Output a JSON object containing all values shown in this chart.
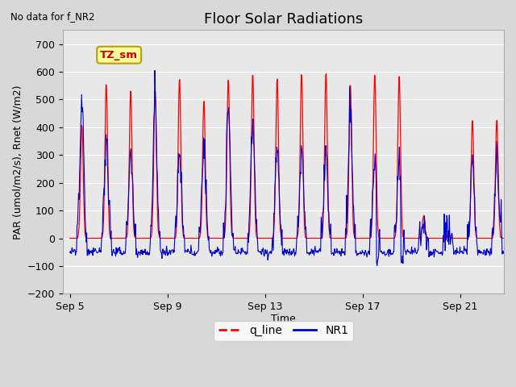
{
  "title": "Floor Solar Radiations",
  "subtitle": "No data for f_NR2",
  "xlabel": "Time",
  "ylabel": "PAR (umol/m2/s), Rnet (W/m2)",
  "ylim": [
    -200,
    750
  ],
  "yticks": [
    -200,
    -100,
    0,
    100,
    200,
    300,
    400,
    500,
    600,
    700
  ],
  "xtick_labels": [
    "Sep 5",
    "Sep 9",
    "Sep 13",
    "Sep 17",
    "Sep 21"
  ],
  "xtick_positions": [
    5,
    9,
    13,
    17,
    21
  ],
  "legend_entries": [
    "q_line",
    "NR1"
  ],
  "q_line_color": "#ff0000",
  "NR1_color": "#0000cc",
  "plot_bg": "#e8e8e8",
  "fig_bg": "#d8d8d8",
  "grid_color": "#ffffff",
  "legend_box_color": "#ffff99",
  "legend_box_edge": "#b8a000",
  "TZ_label": "TZ_sm",
  "title_fontsize": 13,
  "tick_fontsize": 9,
  "ylabel_fontsize": 9,
  "xlabel_fontsize": 9
}
